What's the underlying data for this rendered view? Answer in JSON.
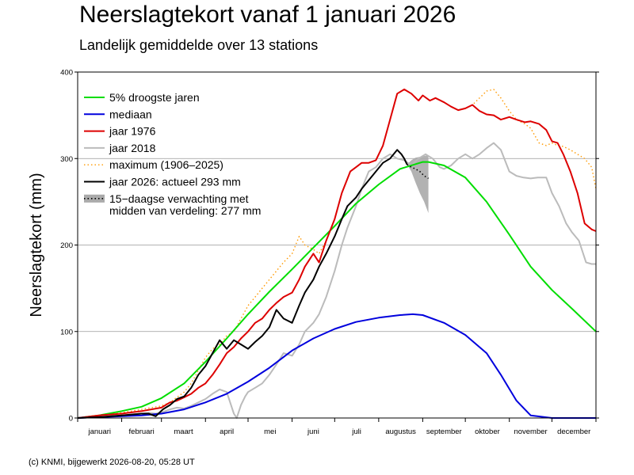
{
  "title": "Neerslagtekort vanaf 1 januari 2026",
  "subtitle": "Landelijk gemiddelde over 13 stations",
  "footer": "(c) KNMI, bijgewerkt 2026-08-20, 05:28 UT",
  "chart_data": {
    "type": "line",
    "ylabel": "Neerslagtekort (mm)",
    "ylim": [
      0,
      400
    ],
    "yticks": [
      0,
      100,
      200,
      300,
      400
    ],
    "xlim": [
      0,
      365
    ],
    "grid": "horizontal",
    "legend_position": "top-left",
    "months": [
      "januari",
      "februari",
      "maart",
      "april",
      "mei",
      "juni",
      "juli",
      "augustus",
      "september",
      "oktober",
      "november",
      "december"
    ],
    "series": [
      {
        "name": "5% droogste jaren",
        "color": "#00dd00",
        "style": "solid",
        "x": [
          0,
          15,
          31,
          45,
          59,
          75,
          90,
          105,
          120,
          135,
          151,
          166,
          181,
          196,
          212,
          227,
          243,
          247,
          258,
          273,
          288,
          304,
          319,
          334,
          349,
          365
        ],
        "y": [
          0,
          3,
          8,
          13,
          23,
          40,
          65,
          92,
          120,
          146,
          172,
          197,
          222,
          248,
          270,
          288,
          296,
          296,
          292,
          278,
          250,
          212,
          175,
          148,
          125,
          100
        ]
      },
      {
        "name": "mediaan",
        "color": "#0000dd",
        "style": "solid",
        "x": [
          0,
          15,
          31,
          45,
          59,
          75,
          90,
          105,
          120,
          135,
          151,
          166,
          181,
          196,
          212,
          227,
          236,
          243,
          258,
          273,
          288,
          298,
          309,
          319,
          334,
          349,
          365
        ],
        "y": [
          0,
          1,
          2,
          3,
          5,
          10,
          18,
          28,
          42,
          58,
          78,
          92,
          103,
          111,
          116,
          119,
          120,
          119,
          110,
          96,
          75,
          50,
          20,
          3,
          0,
          0,
          0
        ]
      },
      {
        "name": "jaar 1976",
        "color": "#dd0000",
        "style": "solid",
        "x": [
          0,
          15,
          31,
          45,
          59,
          65,
          70,
          75,
          80,
          85,
          90,
          95,
          100,
          105,
          110,
          115,
          120,
          125,
          130,
          135,
          140,
          145,
          151,
          156,
          160,
          166,
          170,
          175,
          181,
          186,
          192,
          196,
          200,
          205,
          210,
          215,
          220,
          225,
          230,
          235,
          240,
          243,
          248,
          252,
          258,
          263,
          268,
          273,
          278,
          283,
          288,
          293,
          298,
          304,
          309,
          315,
          319,
          325,
          330,
          334,
          338,
          342,
          347,
          352,
          357,
          362,
          365
        ],
        "y": [
          0,
          3,
          5,
          8,
          12,
          18,
          20,
          24,
          28,
          35,
          40,
          50,
          62,
          75,
          82,
          92,
          100,
          110,
          115,
          125,
          133,
          140,
          145,
          160,
          175,
          190,
          180,
          205,
          230,
          260,
          285,
          290,
          295,
          295,
          298,
          315,
          345,
          375,
          380,
          375,
          367,
          373,
          367,
          370,
          365,
          360,
          356,
          358,
          362,
          355,
          351,
          350,
          345,
          348,
          345,
          342,
          343,
          340,
          333,
          320,
          318,
          305,
          285,
          260,
          225,
          218,
          216
        ]
      },
      {
        "name": "jaar 2018",
        "color": "#bbbbbb",
        "style": "solid",
        "x": [
          0,
          15,
          31,
          45,
          50,
          55,
          60,
          65,
          70,
          75,
          80,
          85,
          90,
          95,
          100,
          105,
          110,
          112,
          115,
          118,
          120,
          125,
          130,
          135,
          140,
          145,
          151,
          156,
          160,
          166,
          170,
          175,
          181,
          186,
          190,
          196,
          200,
          205,
          210,
          215,
          220,
          225,
          230,
          235,
          240,
          245,
          250,
          255,
          258,
          263,
          268,
          273,
          278,
          283,
          288,
          293,
          298,
          304,
          309,
          314,
          319,
          324,
          330,
          334,
          339,
          344,
          348,
          353,
          358,
          362,
          365
        ],
        "y": [
          0,
          1,
          3,
          5,
          6,
          5,
          7,
          10,
          12,
          11,
          14,
          18,
          22,
          28,
          33,
          30,
          5,
          0,
          15,
          25,
          30,
          35,
          40,
          50,
          62,
          75,
          72,
          85,
          100,
          110,
          120,
          140,
          170,
          200,
          220,
          245,
          265,
          285,
          290,
          300,
          305,
          300,
          298,
          292,
          300,
          305,
          300,
          290,
          288,
          292,
          300,
          305,
          300,
          305,
          312,
          318,
          310,
          285,
          280,
          278,
          277,
          278,
          278,
          260,
          245,
          225,
          215,
          205,
          180,
          178,
          178
        ]
      },
      {
        "name": "maximum (1906–2025)",
        "color": "#ff9900",
        "style": "dotted",
        "x": [
          0,
          15,
          31,
          45,
          59,
          65,
          70,
          75,
          80,
          85,
          90,
          95,
          100,
          105,
          110,
          115,
          120,
          125,
          130,
          135,
          140,
          145,
          151,
          156,
          160,
          166,
          170,
          175,
          181,
          186,
          192,
          196,
          200,
          205,
          210,
          215,
          220,
          225,
          230,
          235,
          240,
          243,
          248,
          252,
          258,
          263,
          268,
          273,
          278,
          283,
          288,
          293,
          298,
          304,
          309,
          315,
          319,
          325,
          330,
          334,
          338,
          342,
          347,
          352,
          357,
          362,
          365
        ],
        "y": [
          0,
          3,
          6,
          10,
          14,
          18,
          24,
          30,
          40,
          55,
          70,
          80,
          85,
          95,
          100,
          115,
          130,
          140,
          150,
          160,
          170,
          180,
          190,
          210,
          200,
          195,
          190,
          205,
          230,
          260,
          285,
          290,
          295,
          295,
          298,
          315,
          345,
          375,
          380,
          375,
          367,
          373,
          367,
          370,
          365,
          360,
          356,
          358,
          362,
          370,
          378,
          380,
          370,
          355,
          345,
          340,
          335,
          318,
          315,
          318,
          315,
          314,
          310,
          305,
          300,
          290,
          265
        ]
      },
      {
        "name": "jaar 2026: actueel 293 mm",
        "color": "#000000",
        "style": "solid",
        "x": [
          0,
          15,
          31,
          45,
          50,
          55,
          60,
          62,
          65,
          70,
          75,
          80,
          85,
          90,
          95,
          100,
          105,
          110,
          115,
          120,
          125,
          130,
          135,
          140,
          145,
          151,
          156,
          160,
          166,
          170,
          175,
          181,
          186,
          190,
          196,
          200,
          205,
          210,
          215,
          220,
          225,
          228,
          230,
          232
        ],
        "y": [
          0,
          1,
          3,
          5,
          5,
          2,
          10,
          12,
          15,
          22,
          25,
          35,
          50,
          60,
          75,
          90,
          80,
          90,
          85,
          80,
          88,
          95,
          105,
          125,
          115,
          110,
          130,
          145,
          160,
          175,
          190,
          210,
          230,
          245,
          255,
          265,
          275,
          285,
          295,
          300,
          310,
          305,
          300,
          293
        ]
      }
    ],
    "forecast": {
      "name": "15−daagse verwachting met",
      "name_line2": "midden van verdeling: 277 mm",
      "color": "#aaaaaa",
      "x": [
        232,
        235,
        238,
        241,
        244,
        247
      ],
      "median": [
        293,
        290,
        288,
        285,
        280,
        277
      ],
      "low": [
        293,
        285,
        272,
        260,
        250,
        237
      ],
      "high": [
        293,
        298,
        301,
        302,
        303,
        304
      ]
    },
    "legend": [
      {
        "label": "5% droogste jaren",
        "color": "#00dd00",
        "style": "solid"
      },
      {
        "label": "mediaan",
        "color": "#0000dd",
        "style": "solid"
      },
      {
        "label": "jaar 1976",
        "color": "#dd0000",
        "style": "solid"
      },
      {
        "label": "jaar 2018",
        "color": "#bbbbbb",
        "style": "solid"
      },
      {
        "label": "maximum (1906–2025)",
        "color": "#ff9900",
        "style": "dotted"
      },
      {
        "label": "jaar 2026: actueel 293 mm",
        "color": "#000000",
        "style": "solid"
      },
      {
        "label": "15−daagse verwachting met",
        "label2": "midden van verdeling: 277 mm",
        "color": "#aaaaaa",
        "style": "band"
      }
    ]
  }
}
